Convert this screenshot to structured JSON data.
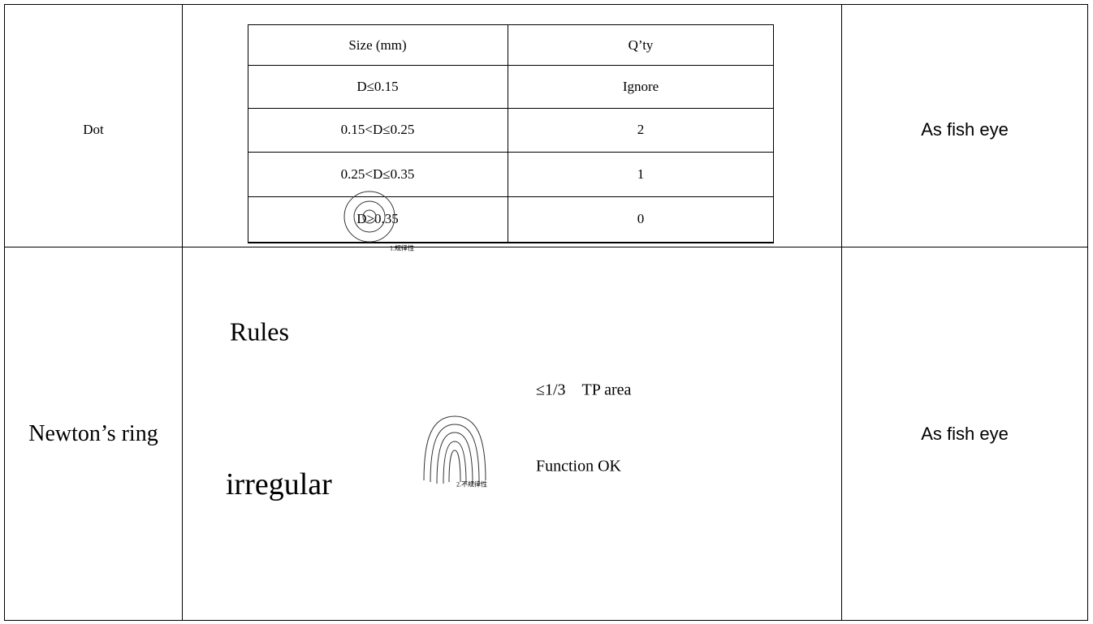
{
  "rows": [
    {
      "defect": "Dot",
      "criteria": {
        "header": [
          "Size (mm)",
          "Q’ty"
        ],
        "rows": [
          [
            "D≤0.15",
            "Ignore"
          ],
          [
            "0.15<D≤0.25",
            "2"
          ],
          [
            "0.25<D≤0.35",
            "1"
          ],
          [
            "D>0.35",
            "0"
          ]
        ]
      },
      "result": "As fish eye"
    },
    {
      "defect": "Newton’s ring",
      "criteria": {
        "rules_label": "Rules",
        "rules_caption": "1.规律性",
        "irregular_label": "irregular",
        "irregular_caption": "2.不规律性",
        "limit": "≤1/3　TP area",
        "function": "Function OK"
      },
      "result": "As fish eye"
    }
  ]
}
